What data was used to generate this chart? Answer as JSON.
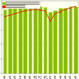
{
  "categories": [
    "4月",
    "5月",
    "6月",
    "7月",
    "8月",
    "9月",
    "10月",
    "11月",
    "12月",
    "1月",
    "2月",
    "3月",
    "4月",
    "5月",
    "6月"
  ],
  "bar_values": [
    88,
    92,
    93,
    94,
    96,
    91,
    93,
    92,
    91,
    85,
    87,
    90,
    90,
    92,
    92
  ],
  "line_values": [
    78,
    80,
    82,
    84,
    86,
    87,
    88,
    87,
    86,
    72,
    82,
    85,
    88,
    90,
    92
  ],
  "bar_color": "#88bb00",
  "bar_edge_color": "#ccee66",
  "line_color": "#dd2200",
  "line_marker_color": "#dd2200",
  "background_color": "#fffff0",
  "plot_bg_color": "#fffff0",
  "legend1": "高速道路交通量（基点との比率・対前年同期比）",
  "legend2": "ガソリン価格（レギュラー）",
  "ylim": [
    0,
    100
  ],
  "tick_fontsize": 2.2,
  "legend_fontsize": 2.4,
  "figsize": [
    1.0,
    1.0
  ],
  "dpi": 100
}
